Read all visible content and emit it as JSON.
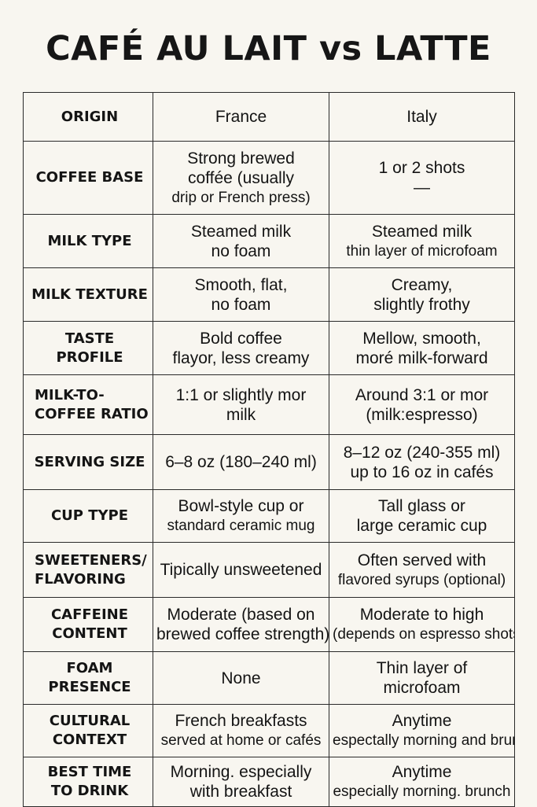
{
  "title": "CAFÉ AU LAIT vs LATTE",
  "rows": [
    {
      "label": [
        "ORIGIN"
      ],
      "france": [
        "France"
      ],
      "italy": [
        "Italy"
      ]
    },
    {
      "label": [
        "COFFEE BASE"
      ],
      "france": [
        "Strong brewed",
        "coffée (usually",
        "drip or French press)"
      ],
      "italy": [
        "1 or 2 shots",
        "—"
      ]
    },
    {
      "label": [
        "MILK TYPE"
      ],
      "france": [
        "Steamed milk",
        "no foam"
      ],
      "italy": [
        "Steamed milk",
        "thin layer of microfoam"
      ]
    },
    {
      "label": [
        "MILK TEXTURE"
      ],
      "france": [
        "Smooth, flat,",
        "no foam"
      ],
      "italy": [
        "Creamy,",
        "slightly frothy"
      ]
    },
    {
      "label": [
        "TASTE PROFILE"
      ],
      "france": [
        "Bold coffee",
        "flayor, less creamy"
      ],
      "italy": [
        "Mellow, smooth,",
        "moré milk-forward"
      ]
    },
    {
      "label": [
        "MILK-TO-",
        "COFFEE RATIO"
      ],
      "france": [
        "1:1 or slightly mor",
        "milk"
      ],
      "italy": [
        "Around 3:1 or mor",
        "(milk:espresso)"
      ]
    },
    {
      "label": [
        "SERVING SIZE"
      ],
      "france": [
        "6–8 oz (180–240 ml)"
      ],
      "italy": [
        "8–12 oz (240-355 ml)",
        "up to 16 oz in cafés"
      ]
    },
    {
      "label": [
        "CUP TYPE"
      ],
      "france": [
        "Bowl-style cup or",
        "standard ceramic mug"
      ],
      "italy": [
        "Tall glass or",
        "large ceramic cup"
      ]
    },
    {
      "label": [
        "SWEETENERS/",
        "FLAVORING"
      ],
      "france": [
        "Tipically unsweetened"
      ],
      "italy": [
        "Often served with",
        "flavored syrups (optional)"
      ]
    },
    {
      "label": [
        "CAFFEINE",
        "CONTENT"
      ],
      "france": [
        "Moderate (based on",
        "brewed coffee strength)"
      ],
      "italy": [
        "Moderate to high",
        "(depends on espresso shots"
      ]
    },
    {
      "label": [
        "FOAM",
        "PRESENCE"
      ],
      "france": [
        "None"
      ],
      "italy": [
        "Thin layer of",
        "microfoam"
      ]
    },
    {
      "label": [
        "CULTURAL",
        "CONTEXT"
      ],
      "france": [
        "French breakfasts",
        "served at home or cafés"
      ],
      "italy": [
        "Anytime",
        "espectally morning and brunch"
      ]
    },
    {
      "label": [
        "BEST TIME",
        "TO DRINK"
      ],
      "france": [
        "Morning. especially",
        "with breakfast"
      ],
      "italy": [
        "Anytime",
        "especially morning. brunch"
      ]
    }
  ]
}
